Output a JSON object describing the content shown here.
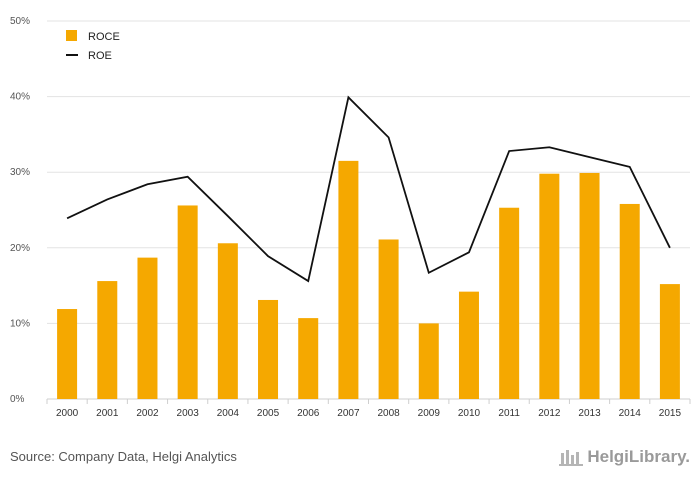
{
  "chart_data": {
    "type": "bar",
    "categories": [
      "2000",
      "2001",
      "2002",
      "2003",
      "2004",
      "2005",
      "2006",
      "2007",
      "2008",
      "2009",
      "2010",
      "2011",
      "2012",
      "2013",
      "2014",
      "2015"
    ],
    "series": [
      {
        "name": "ROCE",
        "kind": "bar",
        "color": "#f5a800",
        "values": [
          11.9,
          15.6,
          18.7,
          25.6,
          20.6,
          13.1,
          10.7,
          31.5,
          21.1,
          10.0,
          14.2,
          25.3,
          29.8,
          29.9,
          25.8,
          15.2
        ]
      },
      {
        "name": "ROE",
        "kind": "line",
        "color": "#111111",
        "values": [
          23.9,
          26.4,
          28.4,
          29.4,
          24.2,
          18.9,
          15.6,
          39.9,
          34.6,
          16.7,
          19.4,
          32.8,
          33.3,
          32.0,
          30.7,
          20.0
        ]
      }
    ],
    "y_ticks": [
      "0%",
      "10%",
      "20%",
      "30%",
      "40%",
      "50%"
    ],
    "ylim": [
      0,
      50
    ],
    "grid": true,
    "legend_position": "top-left"
  },
  "footer": {
    "source": "Source: Company Data, Helgi Analytics",
    "brand": "HelgiLibrary."
  }
}
